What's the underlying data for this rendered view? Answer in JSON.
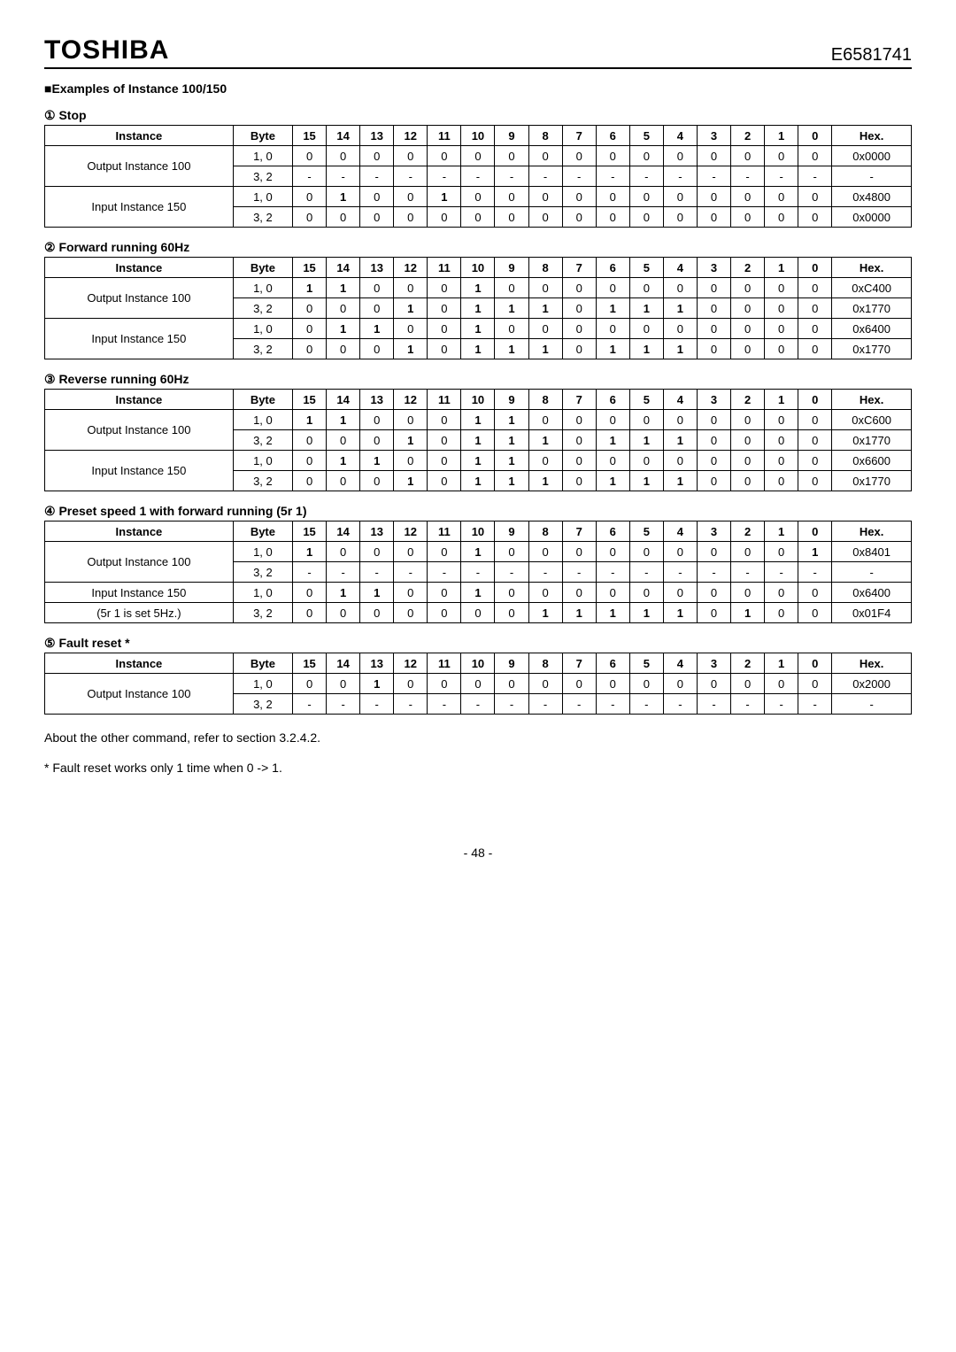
{
  "header": {
    "brand": "TOSHIBA",
    "docnum": "E6581741"
  },
  "section_title": "■Examples of Instance 100/150",
  "bit_cols": [
    "15",
    "14",
    "13",
    "12",
    "11",
    "10",
    "9",
    "8",
    "7",
    "6",
    "5",
    "4",
    "3",
    "2",
    "1",
    "0"
  ],
  "col_labels": {
    "instance": "Instance",
    "byte": "Byte",
    "hex": "Hex."
  },
  "tables": [
    {
      "heading": "①  Stop",
      "rows": [
        {
          "instance": "Output Instance 100",
          "span": 2,
          "byte": "1, 0",
          "bits": [
            "0",
            "0",
            "0",
            "0",
            "0",
            "0",
            "0",
            "0",
            "0",
            "0",
            "0",
            "0",
            "0",
            "0",
            "0",
            "0"
          ],
          "hex": "0x0000"
        },
        {
          "byte": "3, 2",
          "bits": [
            "-",
            "-",
            "-",
            "-",
            "-",
            "-",
            "-",
            "-",
            "-",
            "-",
            "-",
            "-",
            "-",
            "-",
            "-",
            "-"
          ],
          "hex": "-"
        },
        {
          "instance": "Input Instance 150",
          "span": 2,
          "byte": "1, 0",
          "bits": [
            "0",
            "1",
            "0",
            "0",
            "1",
            "0",
            "0",
            "0",
            "0",
            "0",
            "0",
            "0",
            "0",
            "0",
            "0",
            "0"
          ],
          "hex": "0x4800"
        },
        {
          "byte": "3, 2",
          "bits": [
            "0",
            "0",
            "0",
            "0",
            "0",
            "0",
            "0",
            "0",
            "0",
            "0",
            "0",
            "0",
            "0",
            "0",
            "0",
            "0"
          ],
          "hex": "0x0000"
        }
      ]
    },
    {
      "heading": "②  Forward running 60Hz",
      "rows": [
        {
          "instance": "Output Instance 100",
          "span": 2,
          "byte": "1, 0",
          "bits": [
            "1",
            "1",
            "0",
            "0",
            "0",
            "1",
            "0",
            "0",
            "0",
            "0",
            "0",
            "0",
            "0",
            "0",
            "0",
            "0"
          ],
          "hex": "0xC400"
        },
        {
          "byte": "3, 2",
          "bits": [
            "0",
            "0",
            "0",
            "1",
            "0",
            "1",
            "1",
            "1",
            "0",
            "1",
            "1",
            "1",
            "0",
            "0",
            "0",
            "0"
          ],
          "hex": "0x1770"
        },
        {
          "instance": "Input Instance 150",
          "span": 2,
          "byte": "1, 0",
          "bits": [
            "0",
            "1",
            "1",
            "0",
            "0",
            "1",
            "0",
            "0",
            "0",
            "0",
            "0",
            "0",
            "0",
            "0",
            "0",
            "0"
          ],
          "hex": "0x6400"
        },
        {
          "byte": "3, 2",
          "bits": [
            "0",
            "0",
            "0",
            "1",
            "0",
            "1",
            "1",
            "1",
            "0",
            "1",
            "1",
            "1",
            "0",
            "0",
            "0",
            "0"
          ],
          "hex": "0x1770"
        }
      ]
    },
    {
      "heading": "③  Reverse running 60Hz",
      "rows": [
        {
          "instance": "Output Instance 100",
          "span": 2,
          "byte": "1, 0",
          "bits": [
            "1",
            "1",
            "0",
            "0",
            "0",
            "1",
            "1",
            "0",
            "0",
            "0",
            "0",
            "0",
            "0",
            "0",
            "0",
            "0"
          ],
          "hex": "0xC600"
        },
        {
          "byte": "3, 2",
          "bits": [
            "0",
            "0",
            "0",
            "1",
            "0",
            "1",
            "1",
            "1",
            "0",
            "1",
            "1",
            "1",
            "0",
            "0",
            "0",
            "0"
          ],
          "hex": "0x1770"
        },
        {
          "instance": "Input Instance 150",
          "span": 2,
          "byte": "1, 0",
          "bits": [
            "0",
            "1",
            "1",
            "0",
            "0",
            "1",
            "1",
            "0",
            "0",
            "0",
            "0",
            "0",
            "0",
            "0",
            "0",
            "0"
          ],
          "hex": "0x6600"
        },
        {
          "byte": "3, 2",
          "bits": [
            "0",
            "0",
            "0",
            "1",
            "0",
            "1",
            "1",
            "1",
            "0",
            "1",
            "1",
            "1",
            "0",
            "0",
            "0",
            "0"
          ],
          "hex": "0x1770"
        }
      ]
    },
    {
      "heading_html": "④  Preset speed 1 with forward running (5r 1)",
      "rows": [
        {
          "instance": "Output Instance 100",
          "span": 2,
          "byte": "1, 0",
          "bits": [
            "1",
            "0",
            "0",
            "0",
            "0",
            "1",
            "0",
            "0",
            "0",
            "0",
            "0",
            "0",
            "0",
            "0",
            "0",
            "1"
          ],
          "hex": "0x8401"
        },
        {
          "byte": "3, 2",
          "bits": [
            "-",
            "-",
            "-",
            "-",
            "-",
            "-",
            "-",
            "-",
            "-",
            "-",
            "-",
            "-",
            "-",
            "-",
            "-",
            "-"
          ],
          "hex": "-"
        },
        {
          "instance": "Input Instance 150",
          "span": 1,
          "byte": "1, 0",
          "bits": [
            "0",
            "1",
            "1",
            "0",
            "0",
            "1",
            "0",
            "0",
            "0",
            "0",
            "0",
            "0",
            "0",
            "0",
            "0",
            "0"
          ],
          "hex": "0x6400"
        },
        {
          "instance": "(5r 1 is set 5Hz.)",
          "span": 1,
          "byte": "3, 2",
          "bits": [
            "0",
            "0",
            "0",
            "0",
            "0",
            "0",
            "0",
            "1",
            "1",
            "1",
            "1",
            "1",
            "0",
            "1",
            "0",
            "0"
          ],
          "hex": "0x01F4"
        }
      ]
    },
    {
      "heading": "⑤  Fault reset *",
      "rows": [
        {
          "instance": "Output Instance 100",
          "span": 2,
          "byte": "1, 0",
          "bits": [
            "0",
            "0",
            "1",
            "0",
            "0",
            "0",
            "0",
            "0",
            "0",
            "0",
            "0",
            "0",
            "0",
            "0",
            "0",
            "0"
          ],
          "hex": "0x2000"
        },
        {
          "byte": "3, 2",
          "bits": [
            "-",
            "-",
            "-",
            "-",
            "-",
            "-",
            "-",
            "-",
            "-",
            "-",
            "-",
            "-",
            "-",
            "-",
            "-",
            "-"
          ],
          "hex": "-"
        }
      ]
    }
  ],
  "notes": [
    "About the other command, refer to section 3.2.4.2.",
    "* Fault reset works only 1 time when 0 -> 1."
  ],
  "footer": "- 48 -"
}
